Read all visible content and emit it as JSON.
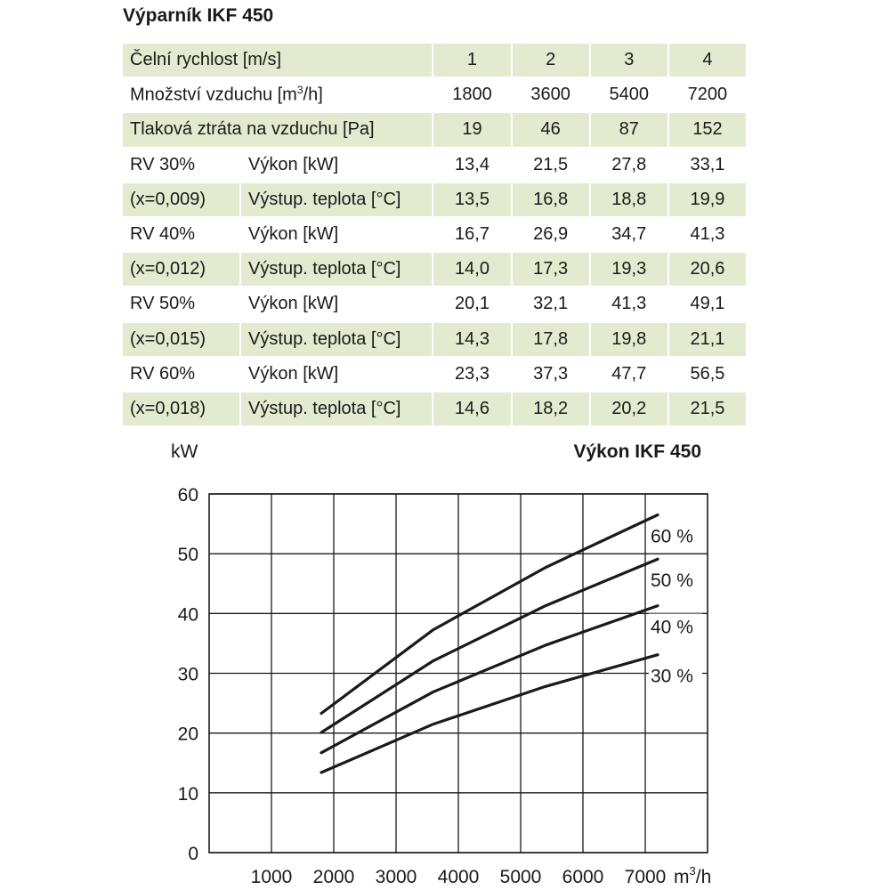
{
  "table": {
    "title": "Výparník IKF 450",
    "header_rows": [
      {
        "label": "Čelní rychlost [m/s]",
        "label_sup": "",
        "label_tail": "",
        "values": [
          "1",
          "2",
          "3",
          "4"
        ],
        "shaded": true
      },
      {
        "label": "Množství vzduchu [m",
        "label_sup": "3",
        "label_tail": "/h]",
        "values": [
          "1800",
          "3600",
          "5400",
          "7200"
        ],
        "shaded": false
      },
      {
        "label": "Tlaková ztráta na vzduchu [Pa]",
        "label_sup": "",
        "label_tail": "",
        "values": [
          "19",
          "46",
          "87",
          "152"
        ],
        "shaded": true
      }
    ],
    "groups": [
      {
        "rv": "RV 30%",
        "x": "(x=0,009)",
        "power_label": "Výkon [kW]",
        "temp_label": "Výstup. teplota [°C]",
        "power": [
          "13,4",
          "21,5",
          "27,8",
          "33,1"
        ],
        "temp": [
          "13,5",
          "16,8",
          "18,8",
          "19,9"
        ]
      },
      {
        "rv": "RV 40%",
        "x": "(x=0,012)",
        "power_label": "Výkon [kW]",
        "temp_label": "Výstup. teplota [°C]",
        "power": [
          "16,7",
          "26,9",
          "34,7",
          "41,3"
        ],
        "temp": [
          "14,0",
          "17,3",
          "19,3",
          "20,6"
        ]
      },
      {
        "rv": "RV 50%",
        "x": "(x=0,015)",
        "power_label": "Výkon [kW]",
        "temp_label": "Výstup. teplota [°C]",
        "power": [
          "20,1",
          "32,1",
          "41,3",
          "49,1"
        ],
        "temp": [
          "14,3",
          "17,8",
          "19,8",
          "21,1"
        ]
      },
      {
        "rv": "RV 60%",
        "x": "(x=0,018)",
        "power_label": "Výkon [kW]",
        "temp_label": "Výstup. teplota [°C]",
        "power": [
          "23,3",
          "37,3",
          "47,7",
          "56,5"
        ],
        "temp": [
          "14,6",
          "18,2",
          "20,2",
          "21,5"
        ]
      }
    ]
  },
  "chart_data": {
    "type": "line",
    "title": "Výkon IKF 450",
    "ylabel": "kW",
    "xlabel_main": "m",
    "xlabel_sup": "3",
    "xlabel_tail": "/h",
    "xlim": [
      0,
      8000
    ],
    "ylim": [
      0,
      60
    ],
    "xticks": [
      1000,
      2000,
      3000,
      4000,
      5000,
      6000,
      7000
    ],
    "yticks": [
      0,
      10,
      20,
      30,
      40,
      50,
      60
    ],
    "grid": true,
    "x": [
      1800,
      3600,
      5400,
      7200
    ],
    "series": [
      {
        "name": "30 %",
        "values": [
          13.4,
          21.5,
          27.8,
          33.1
        ]
      },
      {
        "name": "40 %",
        "values": [
          16.7,
          26.9,
          34.7,
          41.3
        ]
      },
      {
        "name": "50 %",
        "values": [
          20.1,
          32.1,
          41.3,
          49.1
        ]
      },
      {
        "name": "60 %",
        "values": [
          23.3,
          37.3,
          47.7,
          56.5
        ]
      }
    ]
  }
}
